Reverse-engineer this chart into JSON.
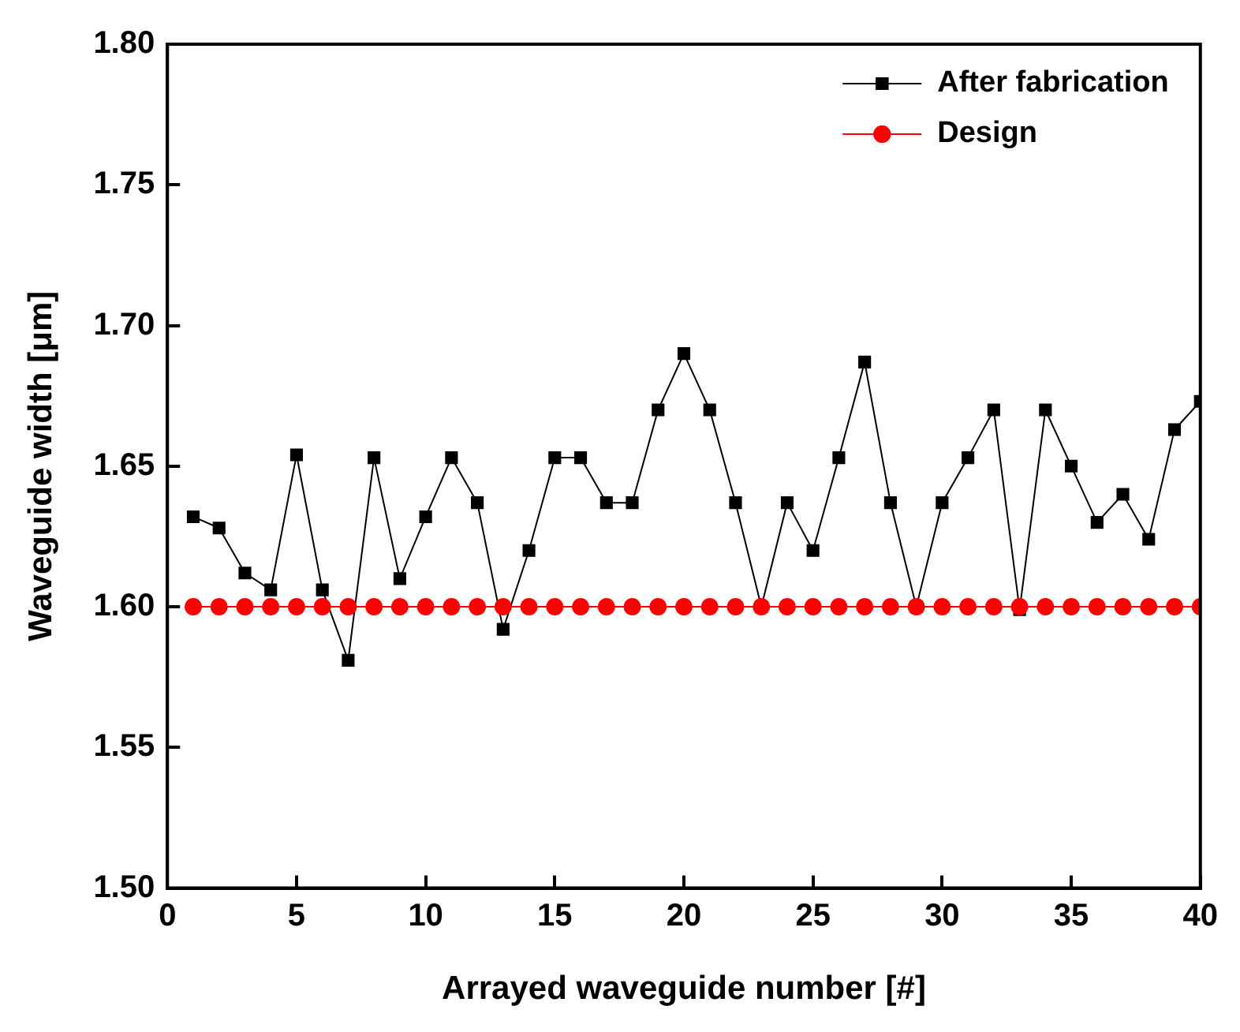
{
  "chart_data": {
    "type": "line",
    "xlabel": "Arrayed waveguide number [#]",
    "ylabel": "Waveguide width [μm]",
    "x": [
      1,
      2,
      3,
      4,
      5,
      6,
      7,
      8,
      9,
      10,
      11,
      12,
      13,
      14,
      15,
      16,
      17,
      18,
      19,
      20,
      21,
      22,
      23,
      24,
      25,
      26,
      27,
      28,
      29,
      30,
      31,
      32,
      33,
      34,
      35,
      36,
      37,
      38,
      39,
      40
    ],
    "series": [
      {
        "name": "After fabrication",
        "color": "#000000",
        "marker": "square",
        "values": [
          1.632,
          1.628,
          1.612,
          1.606,
          1.654,
          1.606,
          1.581,
          1.653,
          1.61,
          1.632,
          1.653,
          1.637,
          1.592,
          1.62,
          1.653,
          1.653,
          1.637,
          1.637,
          1.67,
          1.69,
          1.67,
          1.637,
          1.6,
          1.637,
          1.62,
          1.653,
          1.687,
          1.637,
          1.6,
          1.637,
          1.653,
          1.67,
          1.599,
          1.67,
          1.65,
          1.63,
          1.64,
          1.624,
          1.663,
          1.673
        ]
      },
      {
        "name": "Design",
        "color": "#ff0000",
        "marker": "circle",
        "values": [
          1.6,
          1.6,
          1.6,
          1.6,
          1.6,
          1.6,
          1.6,
          1.6,
          1.6,
          1.6,
          1.6,
          1.6,
          1.6,
          1.6,
          1.6,
          1.6,
          1.6,
          1.6,
          1.6,
          1.6,
          1.6,
          1.6,
          1.6,
          1.6,
          1.6,
          1.6,
          1.6,
          1.6,
          1.6,
          1.6,
          1.6,
          1.6,
          1.6,
          1.6,
          1.6,
          1.6,
          1.6,
          1.6,
          1.6,
          1.6
        ]
      }
    ],
    "xlim": [
      0,
      40
    ],
    "xticks": [
      0,
      5,
      10,
      15,
      20,
      25,
      30,
      35,
      40
    ],
    "ylim": [
      1.5,
      1.8
    ],
    "yticks": [
      {
        "value": 1.5,
        "label": "1.50"
      },
      {
        "value": 1.55,
        "label": "1.55"
      },
      {
        "value": 1.6,
        "label": "1.60"
      },
      {
        "value": 1.65,
        "label": "1.65"
      },
      {
        "value": 1.7,
        "label": "1.70"
      },
      {
        "value": 1.75,
        "label": "1.75"
      },
      {
        "value": 1.8,
        "label": "1.80"
      }
    ],
    "grid": false,
    "legend": "top right",
    "line_style": "solid"
  }
}
